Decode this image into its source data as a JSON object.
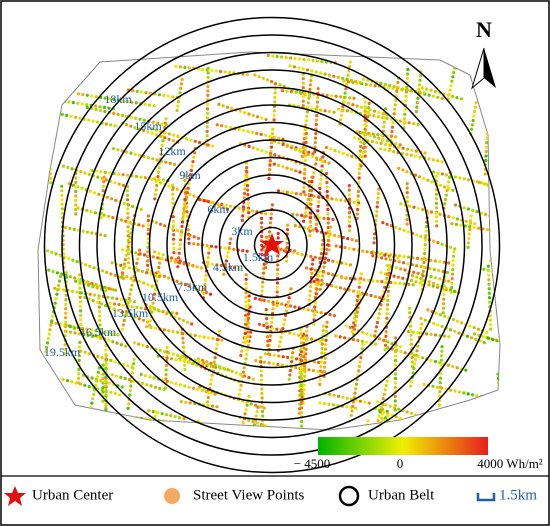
{
  "map": {
    "north_label": "N",
    "ring_labels": [
      "1.5km",
      "3km",
      "4.5km",
      "6km",
      "7.5km",
      "9km",
      "10.5km",
      "12km",
      "13.5km",
      "15km",
      "16.5km",
      "18km",
      "19.5km"
    ],
    "colorbar_labels": [
      "− 4500",
      "0",
      "4000 Wh/m²"
    ],
    "legend": [
      "Urban Center",
      "Street View Points",
      "Urban Belt",
      "1.5km"
    ]
  }
}
